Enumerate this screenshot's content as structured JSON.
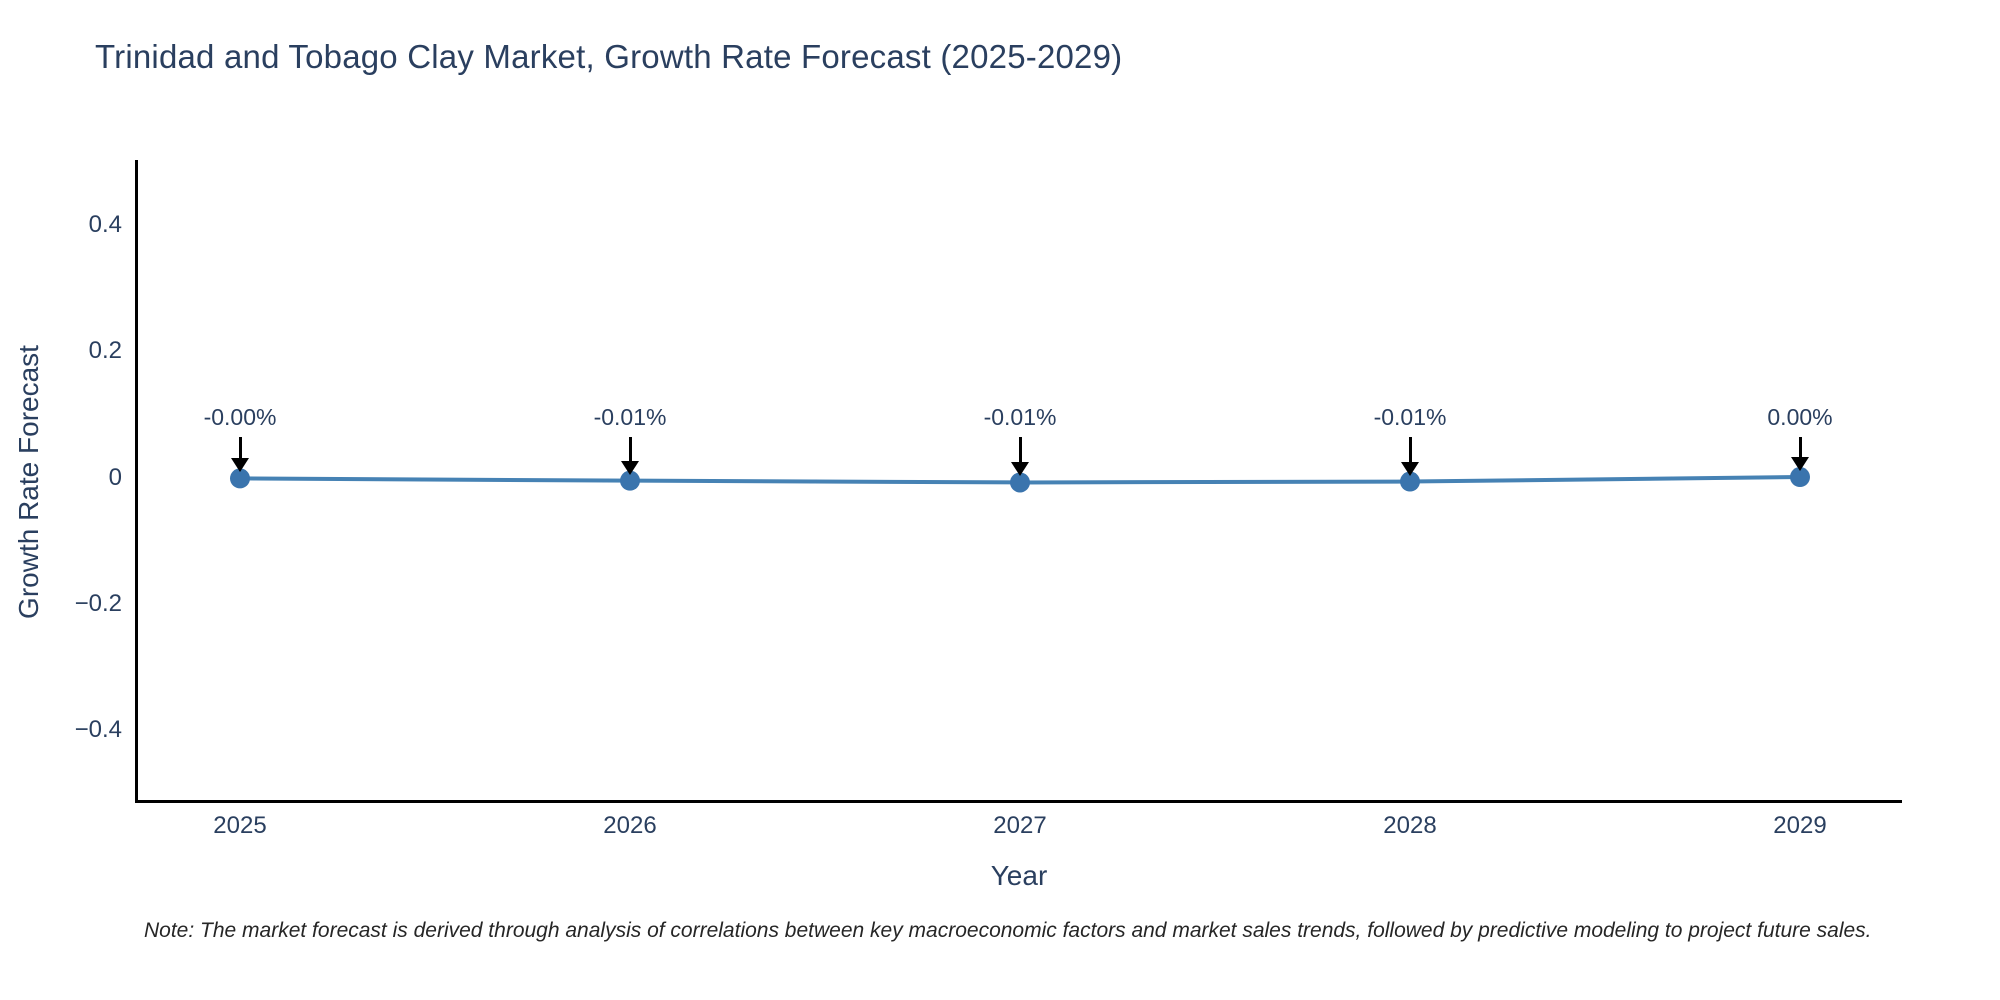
{
  "page": {
    "background": "#ffffff"
  },
  "chart_data": {
    "type": "line",
    "title": "Trinidad and Tobago Clay Market, Growth Rate Forecast (2025-2029)",
    "xlabel": "Year",
    "ylabel": "Growth Rate Forecast",
    "x": [
      2025,
      2026,
      2027,
      2028,
      2029
    ],
    "series": [
      {
        "name": "Growth Rate Forecast",
        "values_pct": [
          -0.002,
          -0.007,
          -0.011,
          -0.009,
          0.001
        ]
      }
    ],
    "point_labels": [
      "-0.00%",
      "-0.01%",
      "-0.01%",
      "-0.01%",
      "0.00%"
    ],
    "xticks": [
      {
        "v": 2025,
        "label": "2025"
      },
      {
        "v": 2026,
        "label": "2026"
      },
      {
        "v": 2027,
        "label": "2027"
      },
      {
        "v": 2028,
        "label": "2028"
      },
      {
        "v": 2029,
        "label": "2029"
      }
    ],
    "yticks": [
      {
        "v": 0.4,
        "label": "0.4"
      },
      {
        "v": 0.2,
        "label": "0.2"
      },
      {
        "v": 0,
        "label": "0"
      },
      {
        "v": -0.2,
        "label": "−0.2"
      },
      {
        "v": -0.4,
        "label": "−0.4"
      }
    ],
    "ylim": [
      -0.5,
      0.5
    ],
    "grid": false,
    "legend": "none",
    "line_color": "#4682b4",
    "marker_color": "#3a74ad",
    "axis_color": "#000000",
    "text_color": "#2a3f5f",
    "annotation_arrow_color": "#000000"
  },
  "note": {
    "text": "Note: The market forecast is derived through analysis of correlations between key macroeconomic factors and market sales trends, followed by predictive modeling to project future sales."
  }
}
